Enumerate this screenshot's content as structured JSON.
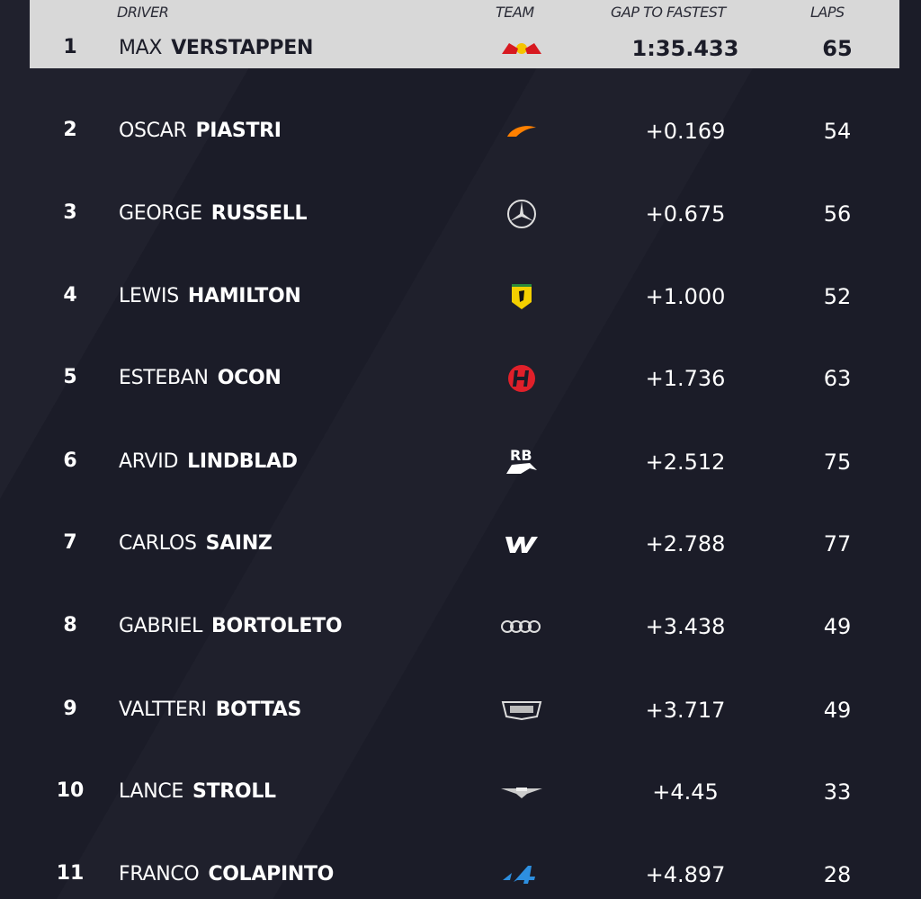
{
  "headers": {
    "driver": "DRIVER",
    "team": "TEAM",
    "gap": "GAP TO FASTEST",
    "laps": "LAPS"
  },
  "colors": {
    "header_bg": "#d8d8d8",
    "background": "#1b1c28"
  },
  "rows": [
    {
      "pos": "1",
      "first": "MAX",
      "last": "VERSTAPPEN",
      "team_icon": "red-bull-logo-icon",
      "gap": "1:35.433",
      "laps": "65"
    },
    {
      "pos": "2",
      "first": "OSCAR",
      "last": "PIASTRI",
      "team_icon": "mclaren-logo-icon",
      "gap": "+0.169",
      "laps": "54"
    },
    {
      "pos": "3",
      "first": "GEORGE",
      "last": "RUSSELL",
      "team_icon": "mercedes-logo-icon",
      "gap": "+0.675",
      "laps": "56"
    },
    {
      "pos": "4",
      "first": "LEWIS",
      "last": "HAMILTON",
      "team_icon": "ferrari-logo-icon",
      "gap": "+1.000",
      "laps": "52"
    },
    {
      "pos": "5",
      "first": "ESTEBAN",
      "last": "OCON",
      "team_icon": "haas-logo-icon",
      "gap": "+1.736",
      "laps": "63"
    },
    {
      "pos": "6",
      "first": "ARVID",
      "last": "LINDBLAD",
      "team_icon": "racing-bulls-logo-icon",
      "gap": "+2.512",
      "laps": "75"
    },
    {
      "pos": "7",
      "first": "CARLOS",
      "last": "SAINZ",
      "team_icon": "williams-logo-icon",
      "gap": "+2.788",
      "laps": "77"
    },
    {
      "pos": "8",
      "first": "GABRIEL",
      "last": "BORTOLETO",
      "team_icon": "audi-logo-icon",
      "gap": "+3.438",
      "laps": "49"
    },
    {
      "pos": "9",
      "first": "VALTTERI",
      "last": "BOTTAS",
      "team_icon": "cadillac-logo-icon",
      "gap": "+3.717",
      "laps": "49"
    },
    {
      "pos": "10",
      "first": "LANCE",
      "last": "STROLL",
      "team_icon": "aston-martin-logo-icon",
      "gap": "+4.45",
      "laps": "33"
    },
    {
      "pos": "11",
      "first": "FRANCO",
      "last": "COLAPINTO",
      "team_icon": "alpine-logo-icon",
      "gap": "+4.897",
      "laps": "28"
    }
  ]
}
